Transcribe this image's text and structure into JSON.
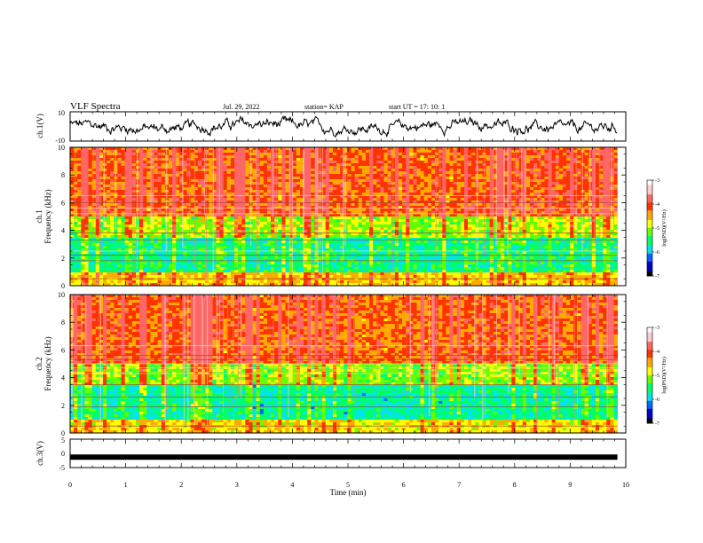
{
  "header": {
    "title": "VLF Spectra",
    "date": "Jul. 29, 2022",
    "station": "station= KAP",
    "start": "start  UT =   17: 10: 1"
  },
  "colors": {
    "spectrum_scale": [
      "#000000",
      "#0000cc",
      "#0066ff",
      "#00e5e5",
      "#00ff66",
      "#66ff00",
      "#ffff00",
      "#ffaa00",
      "#ff3300",
      "#ff6666",
      "#ffcccc",
      "#ffffff"
    ],
    "trace": "#000000"
  },
  "chart_data": [
    {
      "type": "line",
      "name": "ch1-waveform",
      "ylabel": "ch.1(V)",
      "ylim": [
        -10,
        10
      ],
      "y_ticks": [
        "10",
        "-10"
      ],
      "x_range": [
        0,
        10
      ],
      "data_end_min": 9.85,
      "description_value": "noisy waveform oscillating roughly between -5 and 5 V"
    },
    {
      "type": "heatmap",
      "name": "ch1-spectrogram",
      "ylabel_top": "ch.1",
      "ylabel": "Frequency  (kHz)",
      "ylim": [
        0,
        10
      ],
      "y_ticks": [
        "0",
        "2",
        "4",
        "6",
        "8",
        "10"
      ],
      "x_range": [
        0,
        9.85
      ],
      "colorbar": {
        "label": "log(PSD)(V²/Hz)",
        "range": [
          -7,
          -3
        ],
        "ticks": [
          "-3",
          "-4",
          "-5",
          "-6",
          "-7"
        ]
      },
      "bands_khz": [
        {
          "from": 0,
          "to": 1,
          "level": -4.2
        },
        {
          "from": 1,
          "to": 3.5,
          "level": -5.6
        },
        {
          "from": 3.5,
          "to": 5,
          "level": -4.8
        },
        {
          "from": 5,
          "to": 10,
          "level": -3.6
        }
      ],
      "lines_khz": [
        0.5,
        1.8,
        2.2,
        2.5,
        3.3,
        3.8,
        5.2,
        5.6,
        6.0,
        6.5
      ]
    },
    {
      "type": "heatmap",
      "name": "ch2-spectrogram",
      "ylabel_top": "ch.2",
      "ylabel": "Frequency  (kHz)",
      "ylim": [
        0,
        10
      ],
      "y_ticks": [
        "0",
        "2",
        "4",
        "6",
        "8",
        "10"
      ],
      "x_range": [
        0,
        9.85
      ],
      "colorbar": {
        "label": "log(PSD)(V²/Hz)",
        "range": [
          -7,
          -3
        ],
        "ticks": [
          "-3",
          "-4",
          "-5",
          "-6",
          "-7"
        ]
      },
      "bands_khz": [
        {
          "from": 0,
          "to": 1,
          "level": -4.4
        },
        {
          "from": 1,
          "to": 3.5,
          "level": -5.7
        },
        {
          "from": 3.5,
          "to": 5,
          "level": -4.9
        },
        {
          "from": 5,
          "to": 10,
          "level": -3.6
        }
      ],
      "lines_khz": [
        0.5,
        1.9,
        2.6,
        3.5,
        4.3,
        4.7,
        5.0,
        5.3,
        5.6,
        6.3
      ]
    },
    {
      "type": "line",
      "name": "ch3-waveform",
      "ylabel": "ch.3(V)",
      "ylim": [
        -5,
        5
      ],
      "y_ticks": [
        "5",
        "0",
        "-5"
      ],
      "x_range": [
        0,
        10
      ],
      "data_end_min": 9.85,
      "level_v": -1.3
    }
  ],
  "xaxis": {
    "label": "Time  (min)",
    "ticks": [
      "0",
      "1",
      "2",
      "3",
      "4",
      "5",
      "6",
      "7",
      "8",
      "9",
      "10"
    ]
  }
}
